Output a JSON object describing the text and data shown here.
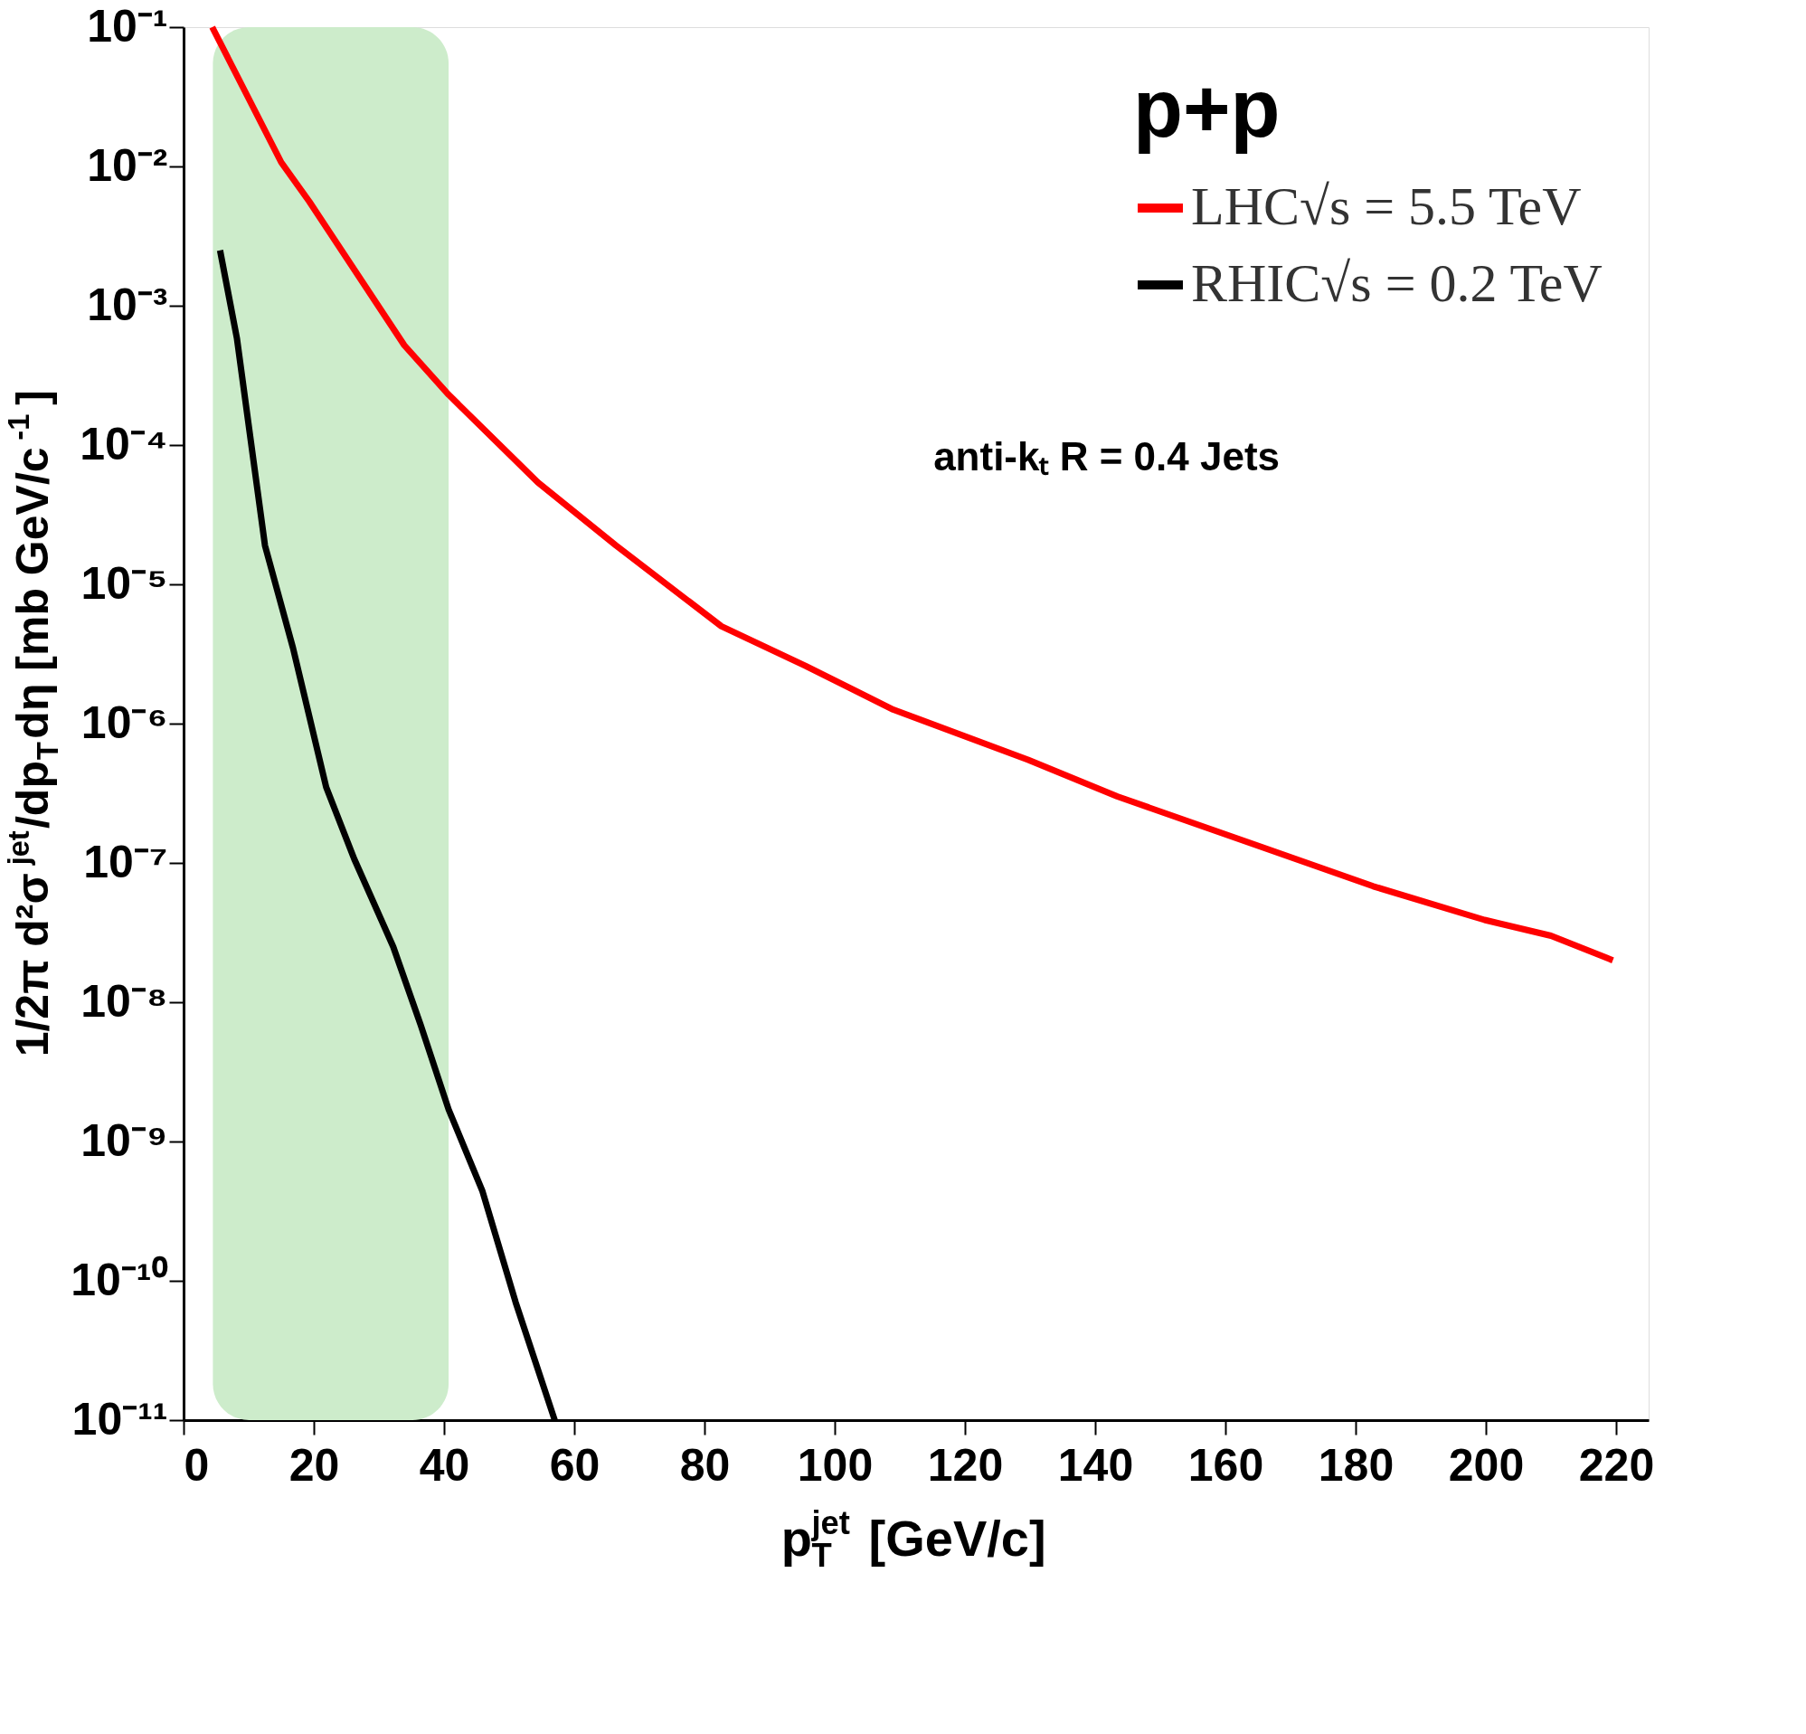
{
  "chart_data": {
    "type": "line",
    "title": "p+p",
    "xlabel": "p$_{T}$$^{jet}$ [GeV/c]",
    "ylabel": "1/2π d²σ$^{jet}$/dp$_{T}$dη [mb GeV/c$^{-1}$]",
    "annotations": [
      "anti-kₜ R = 0.4 Jets"
    ],
    "log": "y",
    "legend": "top right",
    "grid": false,
    "line_style": "solid",
    "marker": "none",
    "xlim": [
      0,
      225
    ],
    "xticks": [
      0,
      20,
      40,
      60,
      80,
      100,
      120,
      140,
      160,
      180,
      200,
      220
    ],
    "ylim": [
      1e-11,
      0.1
    ],
    "yticks": [
      {
        "value": 0.1,
        "label": "10⁻¹"
      },
      {
        "value": 0.01,
        "label": "10⁻²"
      },
      {
        "value": 0.001,
        "label": "10⁻³"
      },
      {
        "value": 0.0001,
        "label": "10⁻⁴"
      },
      {
        "value": 1e-05,
        "label": "10⁻⁵"
      },
      {
        "value": 1e-06,
        "label": "10⁻⁶"
      },
      {
        "value": 1e-07,
        "label": "10⁻⁷"
      },
      {
        "value": 1e-08,
        "label": "10⁻⁸"
      },
      {
        "value": 1e-09,
        "label": "10⁻⁹"
      },
      {
        "value": 1e-10,
        "label": "10⁻¹⁰"
      },
      {
        "value": 1e-11,
        "label": "10⁻¹¹"
      }
    ],
    "bands": [
      {
        "axis": "x",
        "from": 4.5,
        "to": 40.7,
        "color": "#cdeccb"
      }
    ],
    "series": [
      {
        "name": "LHC√s = 5.5 TeV",
        "color": "#ff0000",
        "x": [
          4.4,
          15,
          19.3,
          33.9,
          40.7,
          54.4,
          66.4,
          82.6,
          95.5,
          109,
          129.7,
          143.4,
          165.6,
          182.7,
          199.8,
          210,
          219.5
        ],
        "values": [
          0.1,
          0.0107,
          0.0056,
          0.00052,
          0.00023,
          5.4e-05,
          1.9e-05,
          5e-06,
          2.6e-06,
          1.26e-06,
          5.5e-07,
          3e-07,
          1.3e-07,
          6.8e-08,
          3.9e-08,
          3e-08,
          2e-08
        ]
      },
      {
        "name": "RHIC√s = 0.2 TeV",
        "color": "#000000",
        "x": [
          5.6,
          8.2,
          12.5,
          16.8,
          21.9,
          26.2,
          32.2,
          36.4,
          40.7,
          45.9,
          51,
          57
        ],
        "values": [
          0.0025,
          0.00058,
          1.9e-05,
          3.5e-06,
          3.5e-07,
          1.07e-07,
          2.5e-08,
          6.9e-09,
          1.7e-09,
          4.4e-10,
          7e-11,
          1e-11
        ]
      }
    ]
  }
}
